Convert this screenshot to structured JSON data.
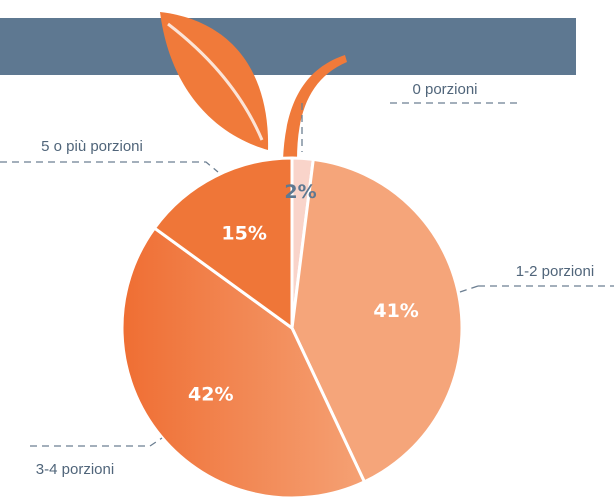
{
  "chart_data": {
    "type": "pie",
    "categories": [
      "0 porzioni",
      "1-2 porzioni",
      "3-4 porzioni",
      "5 o più porzioni"
    ],
    "values": [
      2,
      41,
      42,
      15
    ],
    "value_labels": [
      "2%",
      "41%",
      "42%",
      "15%"
    ],
    "colors": [
      "#f9d4ca",
      "#f5a57a",
      "#f2834a",
      "#ef7638"
    ]
  }
}
